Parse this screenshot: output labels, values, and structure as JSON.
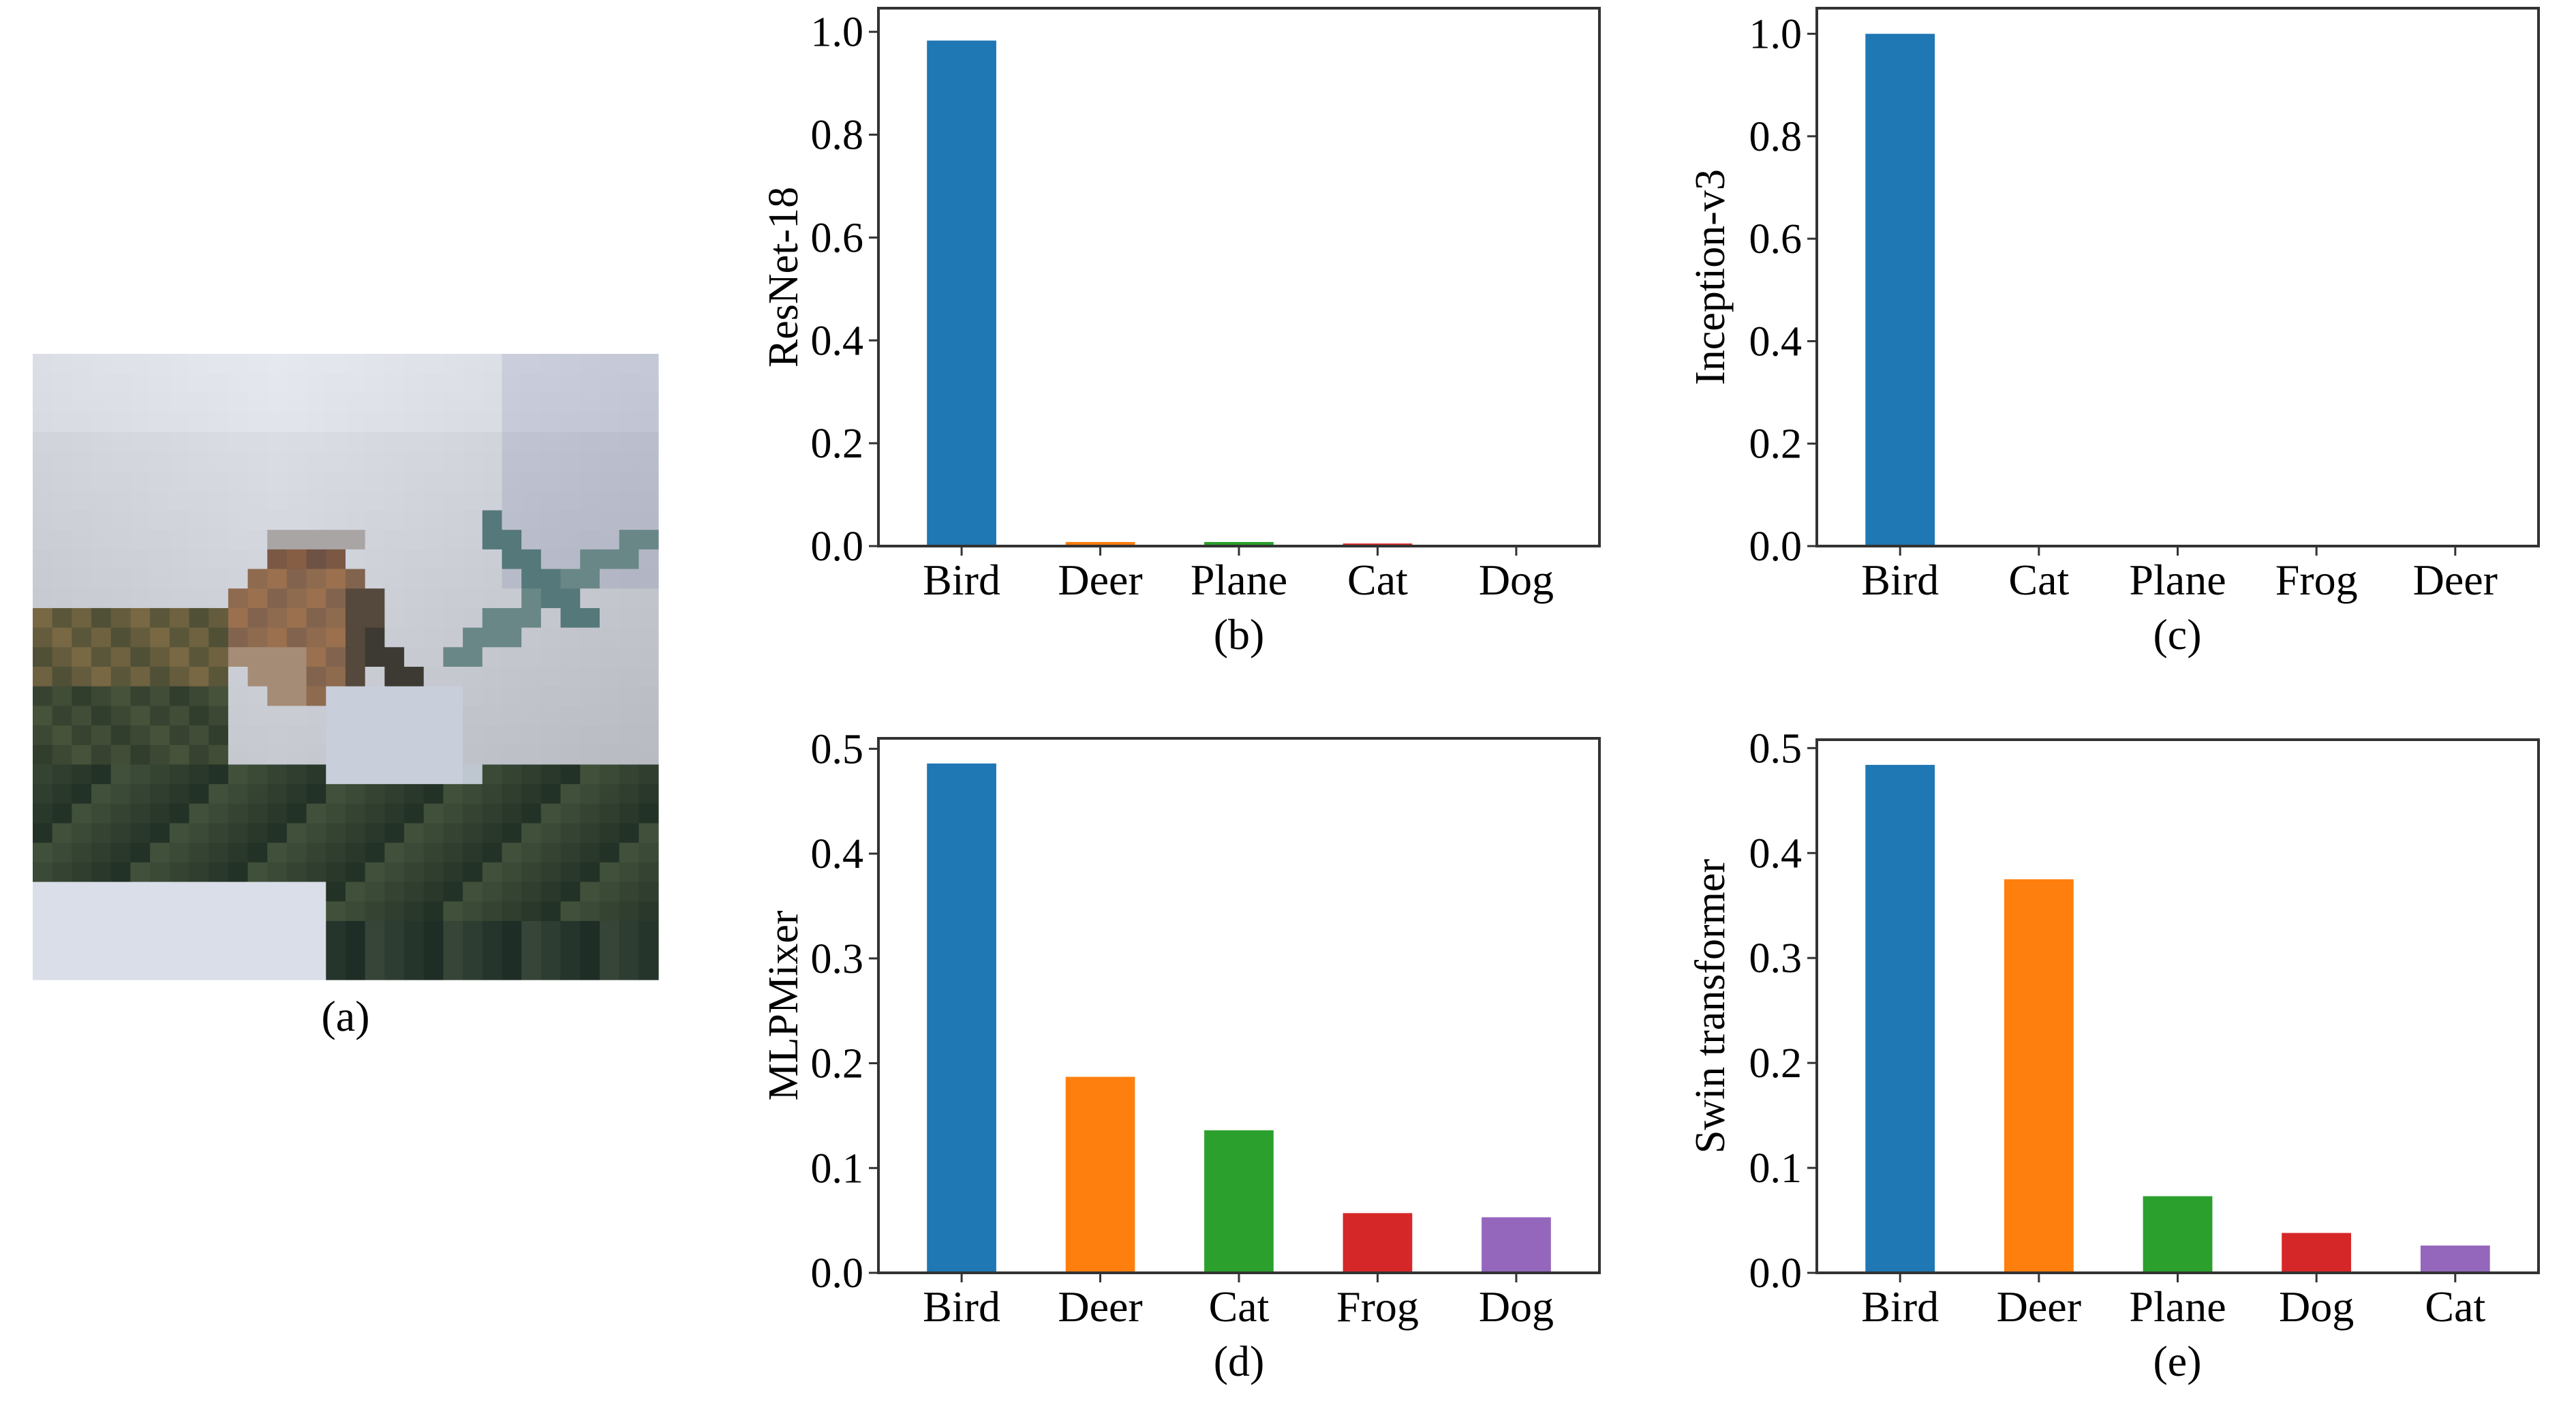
{
  "figure": {
    "panel_a": {
      "caption": "(a)",
      "image_description_label": "input-image"
    }
  },
  "colors": {
    "blue": "#1f77b4",
    "orange": "#ff7f0e",
    "green": "#2ca02c",
    "red": "#d62728",
    "purple": "#9467bd",
    "axis": "#333333"
  },
  "chart_data": [
    {
      "id": "b",
      "type": "bar",
      "caption": "(b)",
      "ylabel": "ResNet-18",
      "xlabel": "",
      "categories": [
        "Bird",
        "Deer",
        "Plane",
        "Cat",
        "Dog"
      ],
      "values": [
        0.983,
        0.008,
        0.008,
        0.005,
        0.0
      ],
      "bar_colors": [
        "#1f77b4",
        "#ff7f0e",
        "#2ca02c",
        "#d62728",
        "#9467bd"
      ],
      "ylim": [
        0,
        1.046
      ],
      "yticks": [
        0.0,
        0.2,
        0.4,
        0.6,
        0.8,
        1.0
      ],
      "ytick_labels": [
        "0.0",
        "0.2",
        "0.4",
        "0.6",
        "0.8",
        "1.0"
      ],
      "grid": false
    },
    {
      "id": "c",
      "type": "bar",
      "caption": "(c)",
      "ylabel": "Inception-v3",
      "xlabel": "",
      "categories": [
        "Bird",
        "Cat",
        "Plane",
        "Frog",
        "Deer"
      ],
      "values": [
        1.0,
        0.0,
        0.0,
        0.0,
        0.0
      ],
      "bar_colors": [
        "#1f77b4",
        "#ff7f0e",
        "#2ca02c",
        "#d62728",
        "#9467bd"
      ],
      "ylim": [
        0,
        1.05
      ],
      "yticks": [
        0.0,
        0.2,
        0.4,
        0.6,
        0.8,
        1.0
      ],
      "ytick_labels": [
        "0.0",
        "0.2",
        "0.4",
        "0.6",
        "0.8",
        "1.0"
      ],
      "grid": false
    },
    {
      "id": "d",
      "type": "bar",
      "caption": "(d)",
      "ylabel": "MLPMixer",
      "xlabel": "",
      "categories": [
        "Bird",
        "Deer",
        "Cat",
        "Frog",
        "Dog"
      ],
      "values": [
        0.486,
        0.187,
        0.136,
        0.057,
        0.053
      ],
      "bar_colors": [
        "#1f77b4",
        "#ff7f0e",
        "#2ca02c",
        "#d62728",
        "#9467bd"
      ],
      "ylim": [
        0,
        0.51
      ],
      "yticks": [
        0.0,
        0.1,
        0.2,
        0.3,
        0.4,
        0.5
      ],
      "ytick_labels": [
        "0.0",
        "0.1",
        "0.2",
        "0.3",
        "0.4",
        "0.5"
      ],
      "grid": false
    },
    {
      "id": "e",
      "type": "bar",
      "caption": "(e)",
      "ylabel": "Swin transformer",
      "xlabel": "",
      "categories": [
        "Bird",
        "Deer",
        "Plane",
        "Dog",
        "Cat"
      ],
      "values": [
        0.484,
        0.375,
        0.073,
        0.038,
        0.026
      ],
      "bar_colors": [
        "#1f77b4",
        "#ff7f0e",
        "#2ca02c",
        "#d62728",
        "#9467bd"
      ],
      "ylim": [
        0,
        0.508
      ],
      "yticks": [
        0.0,
        0.1,
        0.2,
        0.3,
        0.4,
        0.5
      ],
      "ytick_labels": [
        "0.0",
        "0.1",
        "0.2",
        "0.3",
        "0.4",
        "0.5"
      ],
      "grid": false
    }
  ]
}
